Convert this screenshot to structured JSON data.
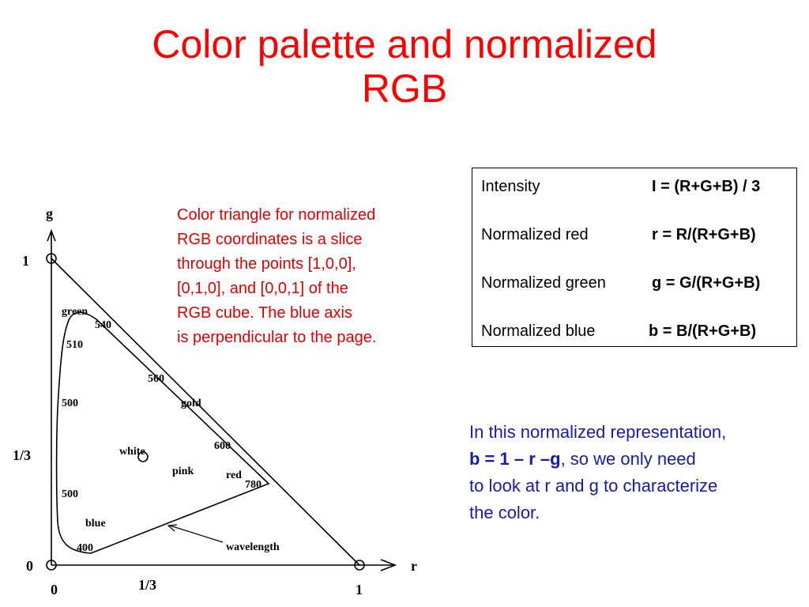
{
  "title": [
    "Color palette and normalized",
    "RGB"
  ],
  "diagram": {
    "axis_g": "g",
    "axis_r": "r",
    "y_labels": [
      "1",
      "1/3",
      "0"
    ],
    "x_labels": [
      "0",
      "1/3",
      "1"
    ],
    "points": [
      "green",
      "540",
      "510",
      "560",
      "gold",
      "500",
      "white",
      "600",
      "pink",
      "red",
      "780",
      "500",
      "blue",
      "400",
      "wavelength"
    ]
  },
  "caption": [
    "Color triangle for normalized",
    "RGB coordinates is a slice",
    "through the points [1,0,0],",
    "[0,1,0], and [0,0,1] of the",
    "RGB cube.  The blue axis",
    "is perpendicular to the page."
  ],
  "table": {
    "rows": [
      [
        "Intensity",
        "I = (R+G+B) / 3"
      ],
      [
        "Normalized red",
        "r = R/(R+G+B)"
      ],
      [
        "Normalized green",
        "g = G/(R+G+B)"
      ],
      [
        "Normalized blue",
        "b = B/(R+G+B)"
      ]
    ]
  },
  "note": {
    "line1": "In this normalized representation,",
    "emphasis": "b = 1 – r –g",
    "line2_rest": ", so we only need",
    "line3": "to look at r and g to characterize",
    "line4": "the color."
  }
}
